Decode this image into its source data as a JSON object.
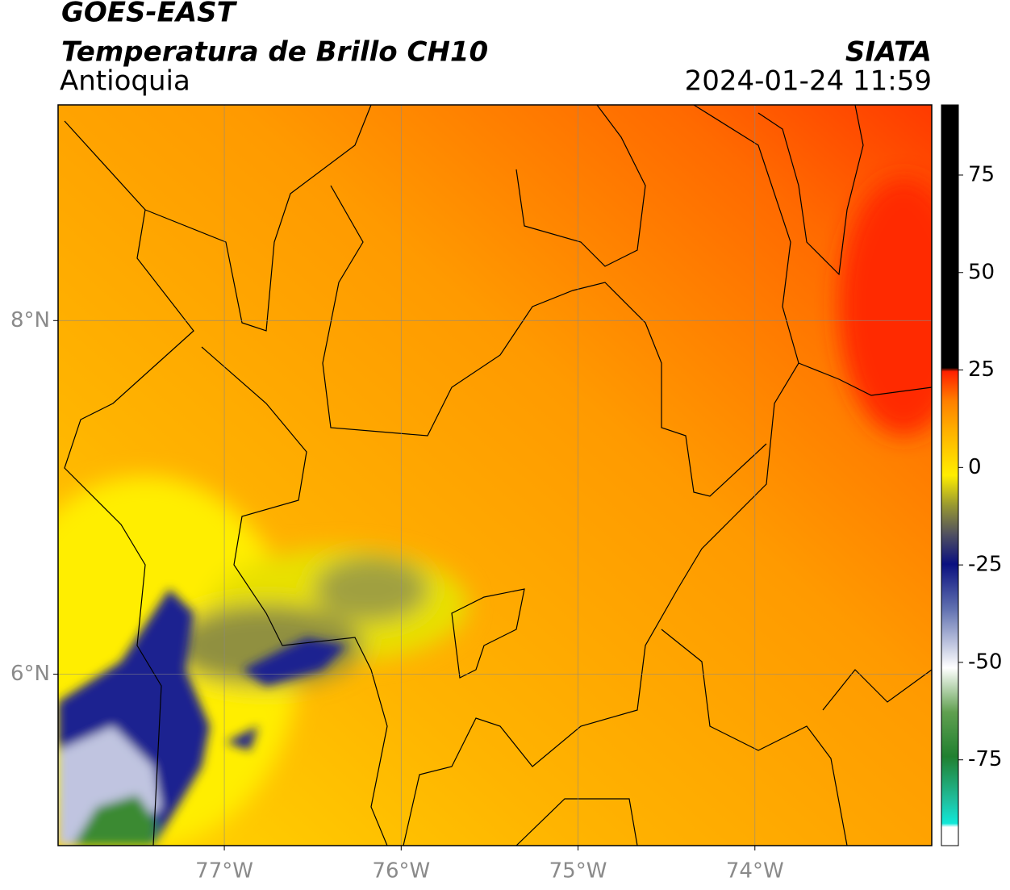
{
  "header": {
    "title": "GOES-EAST",
    "subtitle": "Temperatura de Brillo CH10",
    "region": "Antioquia",
    "source": "SIATA",
    "datetime": "2024-01-24 11:59"
  },
  "map": {
    "xlim": [
      -77.94,
      -73.0
    ],
    "ylim": [
      5.03,
      9.22
    ],
    "xticks": [
      {
        "value": -77,
        "label": "77°W"
      },
      {
        "value": -76,
        "label": "76°W"
      },
      {
        "value": -75,
        "label": "75°W"
      },
      {
        "value": -74,
        "label": "74°W"
      }
    ],
    "yticks": [
      {
        "value": 8,
        "label": "8°N"
      },
      {
        "value": 6,
        "label": "6°N"
      }
    ],
    "grid": true
  },
  "colorbar": {
    "lim": [
      -97,
      93
    ],
    "ticks": [
      75,
      50,
      25,
      0,
      -25,
      -50,
      -75
    ]
  }
}
